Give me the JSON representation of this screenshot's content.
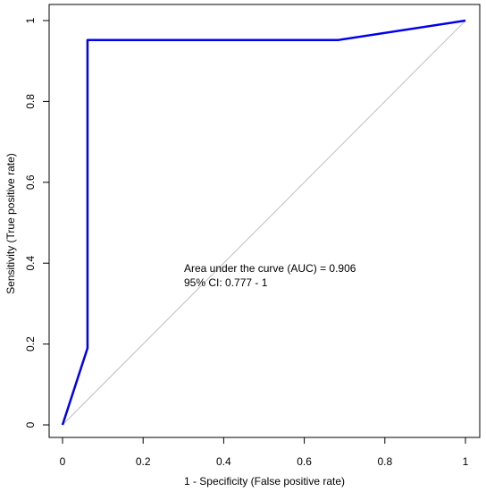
{
  "chart_data": {
    "type": "line",
    "xlabel": "1 - Specificity (False positive rate)",
    "ylabel": "Sensitivity (True positive rate)",
    "xlim": [
      0,
      1
    ],
    "ylim": [
      0,
      1
    ],
    "x_ticks": [
      "0",
      "0.2",
      "0.4",
      "0.6",
      "0.8",
      "1"
    ],
    "y_ticks": [
      "0",
      "0.2",
      "0.4",
      "0.6",
      "0.8",
      "1"
    ],
    "grid": false,
    "series": [
      {
        "color": "#0000ee",
        "x": [
          0,
          0.062,
          0.062,
          0.685,
          1
        ],
        "y": [
          0,
          0.19,
          0.952,
          0.952,
          1
        ]
      }
    ],
    "reference_line": {
      "x": [
        0,
        1
      ],
      "y": [
        0,
        1
      ],
      "color": "#bebebe"
    },
    "annotations": [
      "Area under the curve (AUC) = 0.906",
      "95% CI: 0.777 - 1"
    ]
  }
}
